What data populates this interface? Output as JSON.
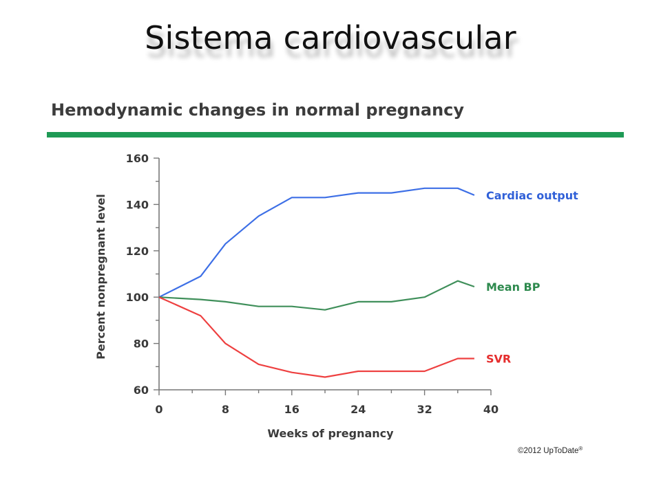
{
  "slide": {
    "title": "Sistema cardiovascular",
    "copyright": "©2012 UpToDate",
    "copyright_mark": "®"
  },
  "chart_data": {
    "type": "line",
    "title": "Hemodynamic changes in normal pregnancy",
    "xlabel": "Weeks of pregnancy",
    "ylabel": "Percent nonpregnant level",
    "xlim": [
      0,
      40
    ],
    "ylim": [
      60,
      160
    ],
    "xticks": [
      0,
      8,
      16,
      24,
      32,
      40
    ],
    "yticks": [
      60,
      80,
      100,
      120,
      140,
      160
    ],
    "grid": false,
    "legend": "right, labels at line ends",
    "x": [
      0,
      5,
      8,
      12,
      16,
      20,
      24,
      28,
      32,
      36,
      38
    ],
    "series": [
      {
        "name": "Cardiac output",
        "color": "#3d6fe6",
        "labelColor": "#3060d8",
        "values": [
          100,
          109,
          123,
          135,
          143,
          143,
          145,
          145,
          147,
          147,
          144
        ]
      },
      {
        "name": "Mean BP",
        "color": "#3f8f5a",
        "labelColor": "#2e8a4e",
        "values": [
          100,
          99,
          98,
          96,
          96,
          94.5,
          98,
          98,
          100,
          107,
          104.5
        ]
      },
      {
        "name": "SVR",
        "color": "#ee4040",
        "labelColor": "#e52d2d",
        "values": [
          100,
          92,
          80,
          71,
          67.5,
          65.5,
          68,
          68,
          68,
          73.5,
          73.5
        ]
      }
    ]
  }
}
